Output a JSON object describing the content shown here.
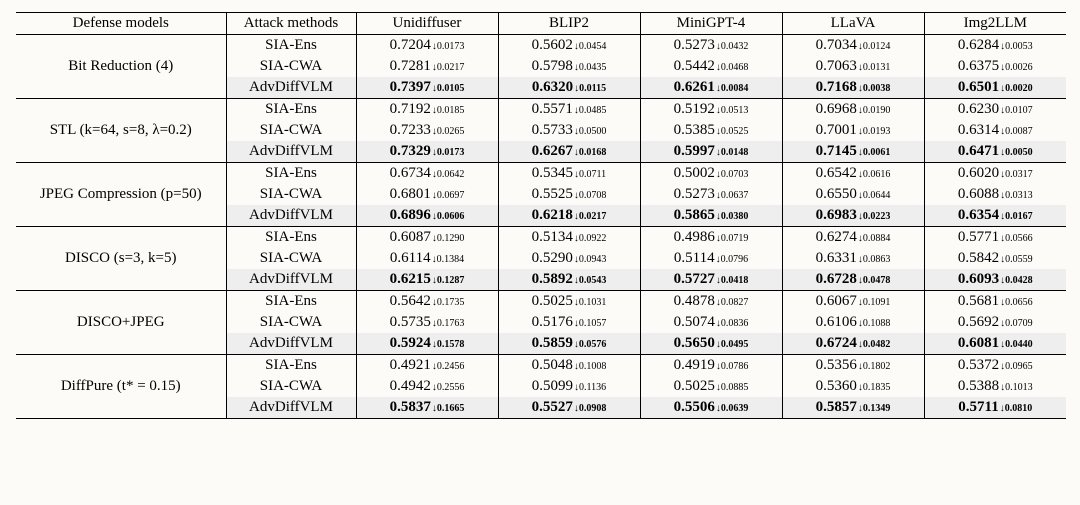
{
  "headers": {
    "defense": "Defense models",
    "attack": "Attack methods",
    "models": [
      "Unidiffuser",
      "BLIP2",
      "MiniGPT-4",
      "LLaVA",
      "Img2LLM"
    ]
  },
  "groups": [
    {
      "defense": "Bit Reduction (4)",
      "rows": [
        {
          "method": "SIA-Ens",
          "bold": false,
          "vals": [
            [
              "0.7204",
              "0.0173"
            ],
            [
              "0.5602",
              "0.0454"
            ],
            [
              "0.5273",
              "0.0432"
            ],
            [
              "0.7034",
              "0.0124"
            ],
            [
              "0.6284",
              "0.0053"
            ]
          ]
        },
        {
          "method": "SIA-CWA",
          "bold": false,
          "vals": [
            [
              "0.7281",
              "0.0217"
            ],
            [
              "0.5798",
              "0.0435"
            ],
            [
              "0.5442",
              "0.0468"
            ],
            [
              "0.7063",
              "0.0131"
            ],
            [
              "0.6375",
              "0.0026"
            ]
          ]
        },
        {
          "method": "AdvDiffVLM",
          "bold": true,
          "hl": true,
          "vals": [
            [
              "0.7397",
              "0.0105"
            ],
            [
              "0.6320",
              "0.0115"
            ],
            [
              "0.6261",
              "0.0084"
            ],
            [
              "0.7168",
              "0.0038"
            ],
            [
              "0.6501",
              "0.0020"
            ]
          ]
        }
      ]
    },
    {
      "defense": "STL (k=64, s=8, λ=0.2)",
      "rows": [
        {
          "method": "SIA-Ens",
          "bold": false,
          "vals": [
            [
              "0.7192",
              "0.0185"
            ],
            [
              "0.5571",
              "0.0485"
            ],
            [
              "0.5192",
              "0.0513"
            ],
            [
              "0.6968",
              "0.0190"
            ],
            [
              "0.6230",
              "0.0107"
            ]
          ]
        },
        {
          "method": "SIA-CWA",
          "bold": false,
          "vals": [
            [
              "0.7233",
              "0.0265"
            ],
            [
              "0.5733",
              "0.0500"
            ],
            [
              "0.5385",
              "0.0525"
            ],
            [
              "0.7001",
              "0.0193"
            ],
            [
              "0.6314",
              "0.0087"
            ]
          ]
        },
        {
          "method": "AdvDiffVLM",
          "bold": true,
          "hl": true,
          "vals": [
            [
              "0.7329",
              "0.0173"
            ],
            [
              "0.6267",
              "0.0168"
            ],
            [
              "0.5997",
              "0.0148"
            ],
            [
              "0.7145",
              "0.0061"
            ],
            [
              "0.6471",
              "0.0050"
            ]
          ]
        }
      ]
    },
    {
      "defense": "JPEG Compression (p=50)",
      "rows": [
        {
          "method": "SIA-Ens",
          "bold": false,
          "vals": [
            [
              "0.6734",
              "0.0642"
            ],
            [
              "0.5345",
              "0.0711"
            ],
            [
              "0.5002",
              "0.0703"
            ],
            [
              "0.6542",
              "0.0616"
            ],
            [
              "0.6020",
              "0.0317"
            ]
          ]
        },
        {
          "method": "SIA-CWA",
          "bold": false,
          "vals": [
            [
              "0.6801",
              "0.0697"
            ],
            [
              "0.5525",
              "0.0708"
            ],
            [
              "0.5273",
              "0.0637"
            ],
            [
              "0.6550",
              "0.0644"
            ],
            [
              "0.6088",
              "0.0313"
            ]
          ]
        },
        {
          "method": "AdvDiffVLM",
          "bold": true,
          "hl": true,
          "vals": [
            [
              "0.6896",
              "0.0606"
            ],
            [
              "0.6218",
              "0.0217"
            ],
            [
              "0.5865",
              "0.0380"
            ],
            [
              "0.6983",
              "0.0223"
            ],
            [
              "0.6354",
              "0.0167"
            ]
          ]
        }
      ]
    },
    {
      "defense": "DISCO (s=3, k=5)",
      "rows": [
        {
          "method": "SIA-Ens",
          "bold": false,
          "vals": [
            [
              "0.6087",
              "0.1290"
            ],
            [
              "0.5134",
              "0.0922"
            ],
            [
              "0.4986",
              "0.0719"
            ],
            [
              "0.6274",
              "0.0884"
            ],
            [
              "0.5771",
              "0.0566"
            ]
          ]
        },
        {
          "method": "SIA-CWA",
          "bold": false,
          "vals": [
            [
              "0.6114",
              "0.1384"
            ],
            [
              "0.5290",
              "0.0943"
            ],
            [
              "0.5114",
              "0.0796"
            ],
            [
              "0.6331",
              "0.0863"
            ],
            [
              "0.5842",
              "0.0559"
            ]
          ]
        },
        {
          "method": "AdvDiffVLM",
          "bold": true,
          "hl": true,
          "vals": [
            [
              "0.6215",
              "0.1287"
            ],
            [
              "0.5892",
              "0.0543"
            ],
            [
              "0.5727",
              "0.0418"
            ],
            [
              "0.6728",
              "0.0478"
            ],
            [
              "0.6093",
              "0.0428"
            ]
          ]
        }
      ]
    },
    {
      "defense": "DISCO+JPEG",
      "rows": [
        {
          "method": "SIA-Ens",
          "bold": false,
          "vals": [
            [
              "0.5642",
              "0.1735"
            ],
            [
              "0.5025",
              "0.1031"
            ],
            [
              "0.4878",
              "0.0827"
            ],
            [
              "0.6067",
              "0.1091"
            ],
            [
              "0.5681",
              "0.0656"
            ]
          ]
        },
        {
          "method": "SIA-CWA",
          "bold": false,
          "vals": [
            [
              "0.5735",
              "0.1763"
            ],
            [
              "0.5176",
              "0.1057"
            ],
            [
              "0.5074",
              "0.0836"
            ],
            [
              "0.6106",
              "0.1088"
            ],
            [
              "0.5692",
              "0.0709"
            ]
          ]
        },
        {
          "method": "AdvDiffVLM",
          "bold": true,
          "hl": true,
          "vals": [
            [
              "0.5924",
              "0.1578"
            ],
            [
              "0.5859",
              "0.0576"
            ],
            [
              "0.5650",
              "0.0495"
            ],
            [
              "0.6724",
              "0.0482"
            ],
            [
              "0.6081",
              "0.0440"
            ]
          ]
        }
      ]
    },
    {
      "defense": "DiffPure (t* = 0.15)",
      "rows": [
        {
          "method": "SIA-Ens",
          "bold": false,
          "vals": [
            [
              "0.4921",
              "0.2456"
            ],
            [
              "0.5048",
              "0.1008"
            ],
            [
              "0.4919",
              "0.0786"
            ],
            [
              "0.5356",
              "0.1802"
            ],
            [
              "0.5372",
              "0.0965"
            ]
          ]
        },
        {
          "method": "SIA-CWA",
          "bold": false,
          "vals": [
            [
              "0.4942",
              "0.2556"
            ],
            [
              "0.5099",
              "0.1136"
            ],
            [
              "0.5025",
              "0.0885"
            ],
            [
              "0.5360",
              "0.1835"
            ],
            [
              "0.5388",
              "0.1013"
            ]
          ]
        },
        {
          "method": "AdvDiffVLM",
          "bold": true,
          "hl": true,
          "vals": [
            [
              "0.5837",
              "0.1665"
            ],
            [
              "0.5527",
              "0.0908"
            ],
            [
              "0.5506",
              "0.0639"
            ],
            [
              "0.5857",
              "0.1349"
            ],
            [
              "0.5711",
              "0.0810"
            ]
          ]
        }
      ]
    }
  ]
}
